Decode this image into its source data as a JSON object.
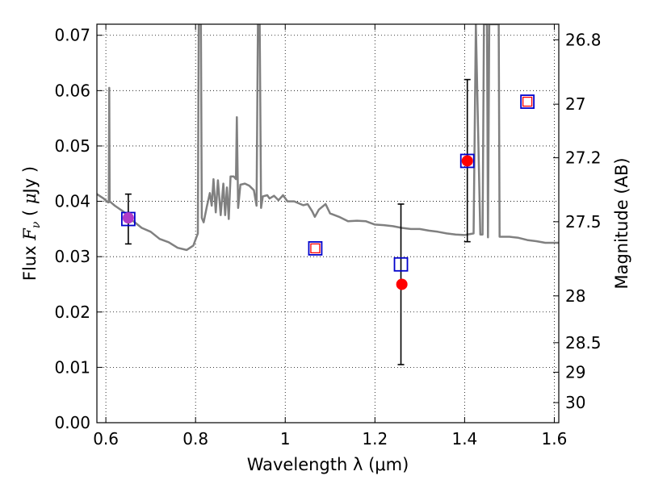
{
  "chart_data": {
    "type": "scatter",
    "xlabel": "Wavelength  λ (μm)",
    "ylabel_parts": [
      "Flux  ",
      "F",
      "ν",
      "  ( ",
      "μ",
      "Jy )"
    ],
    "y2label": "Magnitude (AB)",
    "xlim": [
      0.58,
      1.61
    ],
    "ylim": [
      0.0,
      0.072
    ],
    "grid": true,
    "x_ticks": [
      {
        "value": 0.6,
        "label": "0.6"
      },
      {
        "value": 0.8,
        "label": "0.8"
      },
      {
        "value": 1.0,
        "label": "1"
      },
      {
        "value": 1.2,
        "label": "1.2"
      },
      {
        "value": 1.4,
        "label": "1.4"
      },
      {
        "value": 1.6,
        "label": "1.6"
      }
    ],
    "y_ticks": [
      {
        "value": 0.0,
        "label": "0.00"
      },
      {
        "value": 0.01,
        "label": "0.01"
      },
      {
        "value": 0.02,
        "label": "0.02"
      },
      {
        "value": 0.03,
        "label": "0.03"
      },
      {
        "value": 0.04,
        "label": "0.04"
      },
      {
        "value": 0.05,
        "label": "0.05"
      },
      {
        "value": 0.06,
        "label": "0.06"
      },
      {
        "value": 0.07,
        "label": "0.07"
      }
    ],
    "mag_ticks": [
      {
        "value": 26.8,
        "label": "26.8"
      },
      {
        "value": 27.0,
        "label": "27"
      },
      {
        "value": 27.2,
        "label": "27.2"
      },
      {
        "value": 27.5,
        "label": "27.5"
      },
      {
        "value": 28.0,
        "label": "28"
      },
      {
        "value": 28.5,
        "label": "28.5"
      },
      {
        "value": 29.0,
        "label": "29"
      },
      {
        "value": 30.0,
        "label": "30"
      }
    ],
    "model_sed": {
      "color": "#808080",
      "points": [
        [
          0.58,
          0.0413
        ],
        [
          0.595,
          0.0405
        ],
        [
          0.605,
          0.0398
        ],
        [
          0.6065,
          0.0398
        ],
        [
          0.6075,
          0.0605
        ],
        [
          0.6085,
          0.04
        ],
        [
          0.62,
          0.0392
        ],
        [
          0.64,
          0.0381
        ],
        [
          0.66,
          0.0365
        ],
        [
          0.68,
          0.0352
        ],
        [
          0.7,
          0.0345
        ],
        [
          0.72,
          0.0332
        ],
        [
          0.74,
          0.0326
        ],
        [
          0.76,
          0.0316
        ],
        [
          0.78,
          0.0312
        ],
        [
          0.795,
          0.032
        ],
        [
          0.805,
          0.0342
        ],
        [
          0.807,
          0.072
        ],
        [
          0.812,
          0.072
        ],
        [
          0.814,
          0.037
        ],
        [
          0.818,
          0.0362
        ],
        [
          0.825,
          0.039
        ],
        [
          0.832,
          0.0415
        ],
        [
          0.836,
          0.0392
        ],
        [
          0.84,
          0.044
        ],
        [
          0.845,
          0.038
        ],
        [
          0.85,
          0.0438
        ],
        [
          0.856,
          0.0375
        ],
        [
          0.862,
          0.0432
        ],
        [
          0.866,
          0.0375
        ],
        [
          0.87,
          0.0425
        ],
        [
          0.874,
          0.0368
        ],
        [
          0.878,
          0.0445
        ],
        [
          0.885,
          0.0445
        ],
        [
          0.89,
          0.044
        ],
        [
          0.892,
          0.0552
        ],
        [
          0.895,
          0.0388
        ],
        [
          0.9,
          0.043
        ],
        [
          0.91,
          0.0432
        ],
        [
          0.92,
          0.0428
        ],
        [
          0.93,
          0.042
        ],
        [
          0.936,
          0.0392
        ],
        [
          0.939,
          0.072
        ],
        [
          0.943,
          0.072
        ],
        [
          0.946,
          0.0388
        ],
        [
          0.95,
          0.0409
        ],
        [
          0.96,
          0.0411
        ],
        [
          0.965,
          0.0405
        ],
        [
          0.975,
          0.041
        ],
        [
          0.985,
          0.0402
        ],
        [
          0.995,
          0.0411
        ],
        [
          1.005,
          0.04
        ],
        [
          1.02,
          0.04
        ],
        [
          1.04,
          0.0393
        ],
        [
          1.05,
          0.0395
        ],
        [
          1.06,
          0.0382
        ],
        [
          1.066,
          0.0372
        ],
        [
          1.075,
          0.0385
        ],
        [
          1.09,
          0.0395
        ],
        [
          1.1,
          0.0378
        ],
        [
          1.12,
          0.0372
        ],
        [
          1.14,
          0.0364
        ],
        [
          1.16,
          0.0365
        ],
        [
          1.18,
          0.0364
        ],
        [
          1.2,
          0.0358
        ],
        [
          1.22,
          0.0357
        ],
        [
          1.24,
          0.0355
        ],
        [
          1.26,
          0.0352
        ],
        [
          1.28,
          0.035
        ],
        [
          1.3,
          0.035
        ],
        [
          1.32,
          0.0347
        ],
        [
          1.34,
          0.0345
        ],
        [
          1.36,
          0.0342
        ],
        [
          1.38,
          0.034
        ],
        [
          1.4,
          0.0339
        ],
        [
          1.42,
          0.0342
        ],
        [
          1.425,
          0.072
        ],
        [
          1.435,
          0.034
        ],
        [
          1.44,
          0.034
        ],
        [
          1.443,
          0.072
        ],
        [
          1.45,
          0.072
        ],
        [
          1.452,
          0.0335
        ],
        [
          1.455,
          0.072
        ],
        [
          1.47,
          0.072
        ],
        [
          1.476,
          0.072
        ],
        [
          1.478,
          0.0336
        ],
        [
          1.5,
          0.0336
        ],
        [
          1.52,
          0.0334
        ],
        [
          1.54,
          0.033
        ],
        [
          1.56,
          0.0328
        ],
        [
          1.58,
          0.0325
        ],
        [
          1.6,
          0.0325
        ],
        [
          1.61,
          0.0325
        ]
      ]
    },
    "observed_points": {
      "color": "#0000cc",
      "items": [
        {
          "x": 0.65,
          "y": 0.0368,
          "err": [
            0.0323,
            0.0413
          ]
        },
        {
          "x": 1.067,
          "y": 0.0315
        },
        {
          "x": 1.258,
          "y": 0.0286,
          "err": [
            0.0105,
            0.0395
          ]
        },
        {
          "x": 1.406,
          "y": 0.0473,
          "err": [
            0.0327,
            0.062
          ]
        },
        {
          "x": 1.54,
          "y": 0.058
        }
      ]
    },
    "model_points": {
      "color": "#ff0000",
      "items": [
        {
          "x": 0.65,
          "y": 0.037,
          "fill": "#b03bc8"
        },
        {
          "x": 1.067,
          "y": 0.0315,
          "hollow": true
        },
        {
          "x": 1.26,
          "y": 0.025
        },
        {
          "x": 1.406,
          "y": 0.0473
        },
        {
          "x": 1.54,
          "y": 0.058,
          "hollow": true
        }
      ]
    }
  }
}
